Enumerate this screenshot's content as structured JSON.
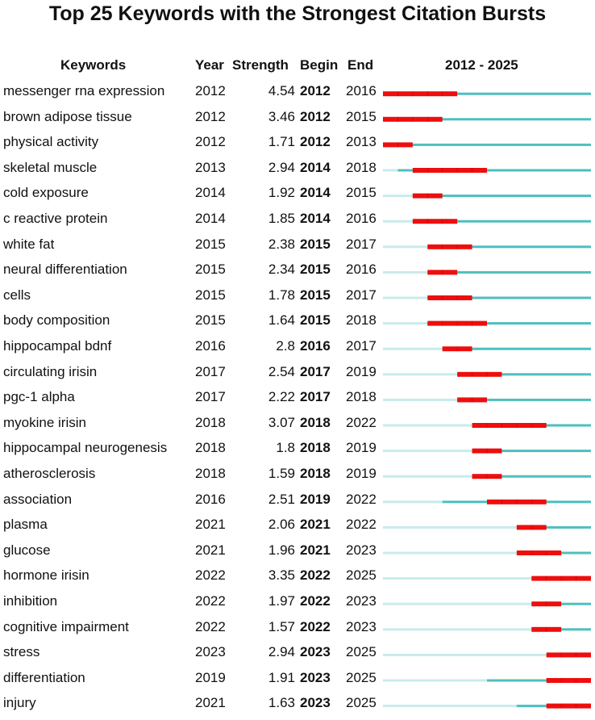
{
  "title": "Top 25 Keywords with the Strongest Citation Bursts",
  "headers": {
    "keywords": "Keywords",
    "year": "Year",
    "strength": "Strength",
    "begin": "Begin",
    "end": "End",
    "range": "2012 - 2025"
  },
  "chart_data": {
    "type": "table",
    "timeline": [
      2012,
      2025
    ],
    "colors": {
      "burst": "#ee0e0e",
      "active": "#4dbfbf",
      "inactive": "#c9ebeb"
    },
    "rows": [
      {
        "keyword": "messenger rna expression",
        "year": "2012",
        "strength": "4.54",
        "begin": "2012",
        "end": "2016"
      },
      {
        "keyword": "brown adipose tissue",
        "year": "2012",
        "strength": "3.46",
        "begin": "2012",
        "end": "2015"
      },
      {
        "keyword": "physical activity",
        "year": "2012",
        "strength": "1.71",
        "begin": "2012",
        "end": "2013"
      },
      {
        "keyword": "skeletal muscle",
        "year": "2013",
        "strength": "2.94",
        "begin": "2014",
        "end": "2018"
      },
      {
        "keyword": "cold exposure",
        "year": "2014",
        "strength": "1.92",
        "begin": "2014",
        "end": "2015"
      },
      {
        "keyword": "c reactive protein",
        "year": "2014",
        "strength": "1.85",
        "begin": "2014",
        "end": "2016"
      },
      {
        "keyword": "white fat",
        "year": "2015",
        "strength": "2.38",
        "begin": "2015",
        "end": "2017"
      },
      {
        "keyword": "neural differentiation",
        "year": "2015",
        "strength": "2.34",
        "begin": "2015",
        "end": "2016"
      },
      {
        "keyword": "cells",
        "year": "2015",
        "strength": "1.78",
        "begin": "2015",
        "end": "2017"
      },
      {
        "keyword": "body composition",
        "year": "2015",
        "strength": "1.64",
        "begin": "2015",
        "end": "2018"
      },
      {
        "keyword": "hippocampal bdnf",
        "year": "2016",
        "strength": "2.8",
        "begin": "2016",
        "end": "2017"
      },
      {
        "keyword": "circulating irisin",
        "year": "2017",
        "strength": "2.54",
        "begin": "2017",
        "end": "2019"
      },
      {
        "keyword": "pgc-1 alpha",
        "year": "2017",
        "strength": "2.22",
        "begin": "2017",
        "end": "2018"
      },
      {
        "keyword": "myokine irisin",
        "year": "2018",
        "strength": "3.07",
        "begin": "2018",
        "end": "2022"
      },
      {
        "keyword": "hippocampal neurogenesis",
        "year": "2018",
        "strength": "1.8",
        "begin": "2018",
        "end": "2019"
      },
      {
        "keyword": "atherosclerosis",
        "year": "2018",
        "strength": "1.59",
        "begin": "2018",
        "end": "2019"
      },
      {
        "keyword": "association",
        "year": "2016",
        "strength": "2.51",
        "begin": "2019",
        "end": "2022"
      },
      {
        "keyword": "plasma",
        "year": "2021",
        "strength": "2.06",
        "begin": "2021",
        "end": "2022"
      },
      {
        "keyword": "glucose",
        "year": "2021",
        "strength": "1.96",
        "begin": "2021",
        "end": "2023"
      },
      {
        "keyword": "hormone irisin",
        "year": "2022",
        "strength": "3.35",
        "begin": "2022",
        "end": "2025"
      },
      {
        "keyword": "inhibition",
        "year": "2022",
        "strength": "1.97",
        "begin": "2022",
        "end": "2023"
      },
      {
        "keyword": "cognitive impairment",
        "year": "2022",
        "strength": "1.57",
        "begin": "2022",
        "end": "2023"
      },
      {
        "keyword": "stress",
        "year": "2023",
        "strength": "2.94",
        "begin": "2023",
        "end": "2025"
      },
      {
        "keyword": "differentiation",
        "year": "2019",
        "strength": "1.91",
        "begin": "2023",
        "end": "2025"
      },
      {
        "keyword": "injury",
        "year": "2021",
        "strength": "1.63",
        "begin": "2023",
        "end": "2025"
      }
    ]
  }
}
